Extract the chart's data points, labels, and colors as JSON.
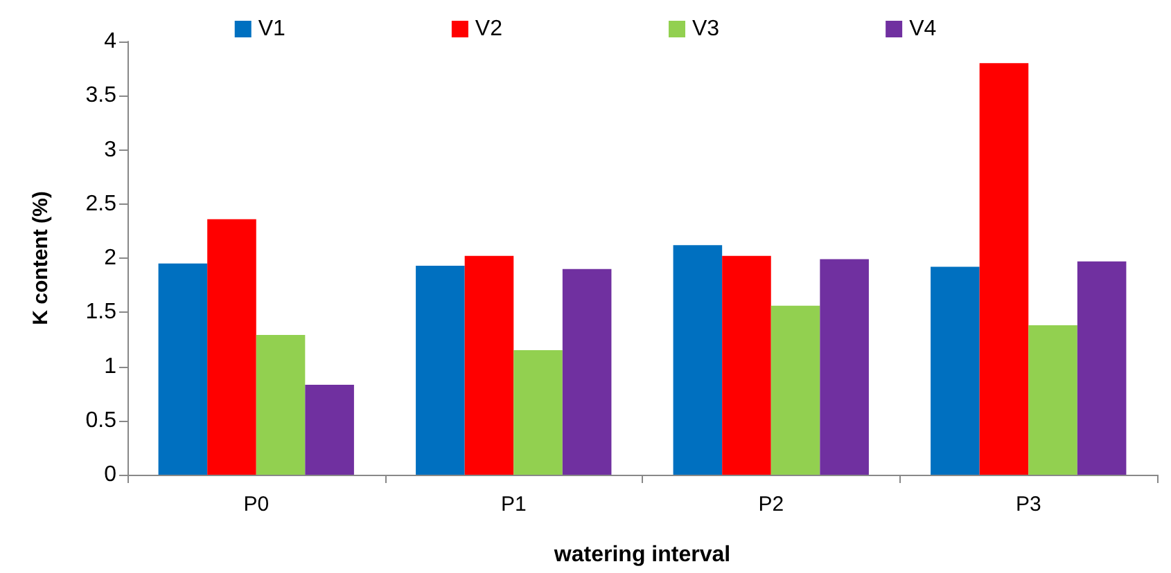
{
  "chart_data": {
    "type": "bar",
    "xlabel": "watering interval",
    "ylabel": "K content (%)",
    "categories": [
      "P0",
      "P1",
      "P2",
      "P3"
    ],
    "series": [
      {
        "name": "V1",
        "color": "#0070c0",
        "values": [
          1.95,
          1.93,
          2.12,
          1.92
        ]
      },
      {
        "name": "V2",
        "color": "#ff0000",
        "values": [
          2.36,
          2.02,
          2.02,
          3.8
        ]
      },
      {
        "name": "V3",
        "color": "#92d050",
        "values": [
          1.29,
          1.15,
          1.56,
          1.38
        ]
      },
      {
        "name": "V4",
        "color": "#7030a0",
        "values": [
          0.83,
          1.9,
          1.99,
          1.97
        ]
      }
    ],
    "ylim": [
      0,
      4
    ],
    "yticks": [
      0,
      0.5,
      1,
      1.5,
      2,
      2.5,
      3,
      3.5,
      4
    ],
    "grid": false,
    "legend": "top"
  }
}
